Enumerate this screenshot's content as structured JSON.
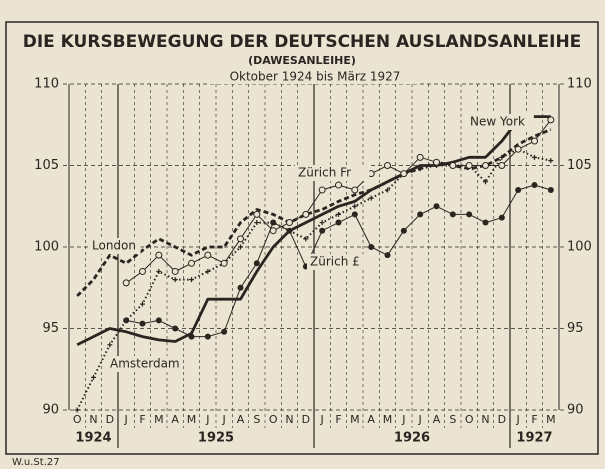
{
  "chart_data": {
    "type": "line",
    "title": "DIE KURSBEWEGUNG DER DEUTSCHEN AUSLANDSANLEIHE",
    "subtitle": "(DAWESANLEIHE)",
    "period": "Oktober 1924 bis März 1927",
    "source": "W.u.St.27",
    "groups": [
      {
        "label": "1924",
        "categories": [
          "O",
          "N",
          "D"
        ]
      },
      {
        "label": "1925",
        "categories": [
          "J",
          "F",
          "M",
          "A",
          "M",
          "J",
          "J",
          "A",
          "S",
          "O",
          "N",
          "D"
        ]
      },
      {
        "label": "1926",
        "categories": [
          "J",
          "F",
          "M",
          "A",
          "M",
          "J",
          "J",
          "A",
          "S",
          "O",
          "N",
          "D"
        ]
      },
      {
        "label": "1927",
        "categories": [
          "J",
          "F",
          "M"
        ]
      }
    ],
    "ylim": [
      90,
      110
    ],
    "yticks": [
      90,
      95,
      100,
      105,
      110
    ],
    "grid": true,
    "color": "#2a2520",
    "series": [
      {
        "name": "New York",
        "line_style": "solid-thick",
        "marker": "none",
        "values": [
          94,
          94.5,
          95,
          94.8,
          94.5,
          94.3,
          94.2,
          94.7,
          96.8,
          96.8,
          96.8,
          98.5,
          100,
          101,
          101.5,
          102,
          102.5,
          102.8,
          103.5,
          104,
          104.5,
          105,
          105,
          105.2,
          105.5,
          105.5,
          106.5,
          107.8,
          108,
          108
        ]
      },
      {
        "name": "London",
        "line_style": "dashed-thick",
        "marker": "none",
        "values": [
          97,
          98,
          99.5,
          99,
          99.8,
          100.5,
          100,
          99.5,
          100,
          100,
          101.5,
          102.3,
          102,
          101.5,
          102,
          102.3,
          102.8,
          103.2,
          103.5,
          104,
          104.5,
          104.8,
          105.2,
          105,
          104.8,
          105,
          105.5,
          106.3,
          106.8,
          107.2
        ]
      },
      {
        "name": "Amsterdam",
        "line_style": "dotted",
        "marker": "cross",
        "values": [
          90,
          92,
          94,
          95.5,
          96.5,
          98.5,
          98,
          98,
          98.5,
          99,
          100,
          101.5,
          101.5,
          101,
          100.5,
          101.5,
          102,
          102.5,
          103,
          103.5,
          104.5,
          104.8,
          105,
          105,
          105,
          104,
          105.5,
          106,
          105.5,
          105.3
        ]
      },
      {
        "name": "Zürich Fr",
        "line_style": "thin",
        "marker": "open-circle",
        "values": [
          null,
          null,
          null,
          97.8,
          98.5,
          99.5,
          98.5,
          99,
          99.5,
          99,
          100.5,
          102,
          101,
          101.5,
          102,
          103.5,
          103.8,
          103.5,
          104.5,
          105,
          104.5,
          105.5,
          105.2,
          105,
          105,
          105,
          105,
          106,
          106.5,
          107.8
        ]
      },
      {
        "name": "Zürich £",
        "line_style": "thin",
        "marker": "filled-circle",
        "values": [
          null,
          null,
          null,
          95.5,
          95.3,
          95.5,
          95,
          94.5,
          94.5,
          94.8,
          97.5,
          99,
          101.5,
          101,
          98.8,
          101,
          101.5,
          102,
          100,
          99.5,
          101,
          102,
          102.5,
          102,
          102,
          101.5,
          101.8,
          103.5,
          103.8,
          103.5
        ]
      }
    ]
  }
}
